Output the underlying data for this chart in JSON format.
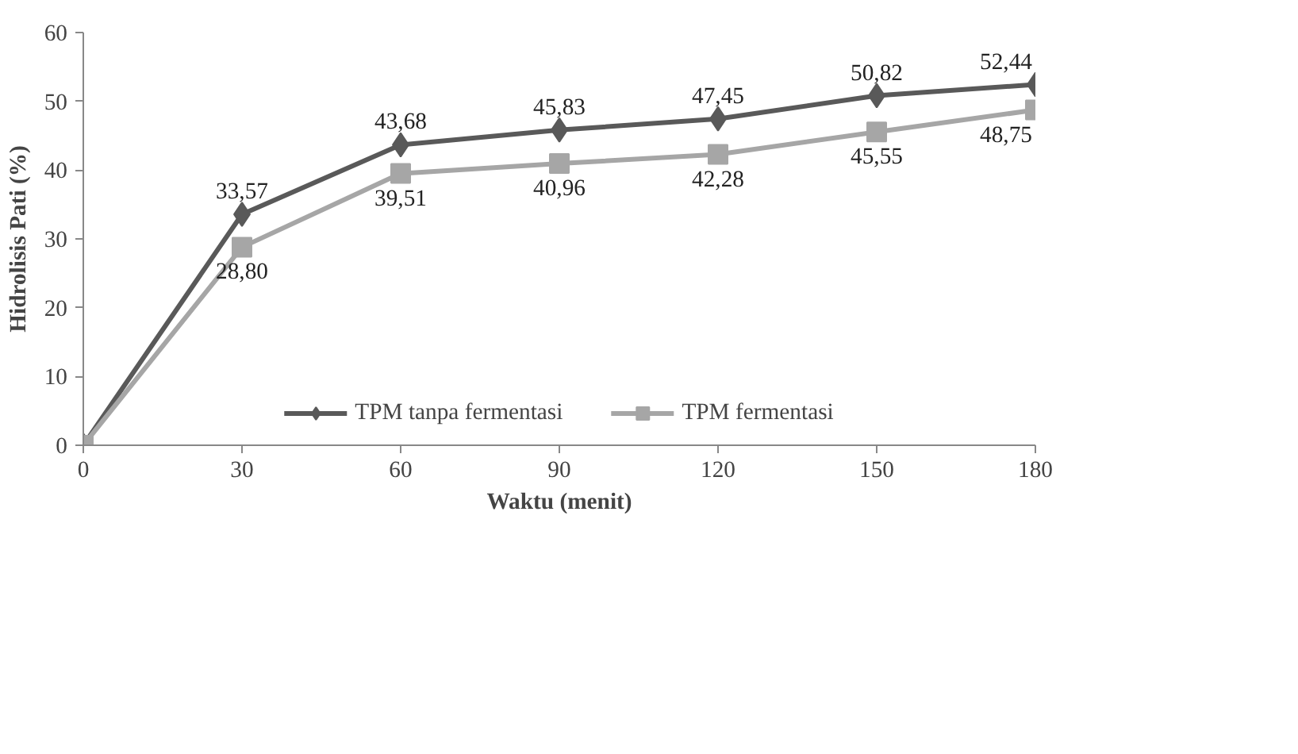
{
  "chart_data": {
    "type": "line",
    "xlabel": "Waktu (menit)",
    "ylabel": "Hidrolisis Pati (%)",
    "x": [
      0,
      30,
      60,
      90,
      120,
      150,
      180
    ],
    "series": [
      {
        "name": "TPM tanpa fermentasi",
        "color": "#595959",
        "marker": "diamond",
        "values": [
          0,
          33.57,
          43.68,
          45.83,
          47.45,
          50.82,
          52.44
        ],
        "value_labels": [
          null,
          "33,57",
          "43,68",
          "45,83",
          "47,45",
          "50,82",
          "52,44"
        ]
      },
      {
        "name": "TPM fermentasi",
        "color": "#a6a6a6",
        "marker": "square",
        "values": [
          0,
          28.8,
          39.51,
          40.96,
          42.28,
          45.55,
          48.75
        ],
        "value_labels": [
          null,
          "28,80",
          "39,51",
          "40,96",
          "42,28",
          "45,55",
          "48,75"
        ]
      }
    ],
    "xlim": [
      0,
      180
    ],
    "ylim": [
      0,
      60
    ],
    "xticks": [
      0,
      30,
      60,
      90,
      120,
      150,
      180
    ],
    "yticks": [
      0,
      10,
      20,
      30,
      40,
      50,
      60
    ],
    "grid": false,
    "legend": "bottom",
    "line_style": "solid"
  }
}
